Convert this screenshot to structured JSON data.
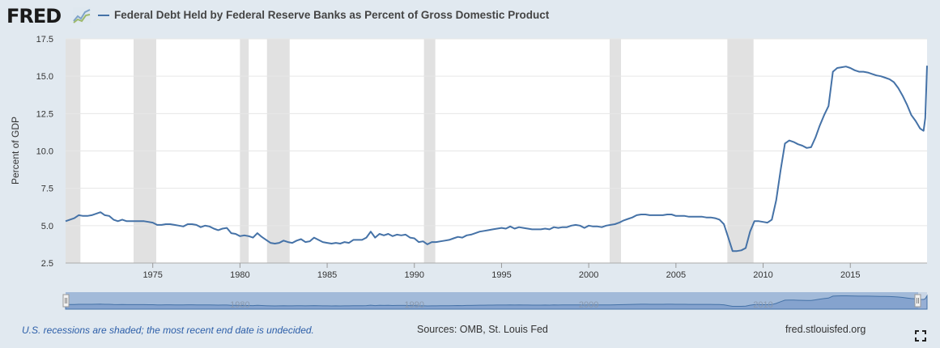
{
  "header": {
    "logo_text": "FRED",
    "logo_icon": "chart-icon",
    "series_color": "#4572a7"
  },
  "chart_data": {
    "type": "line",
    "title": "Federal Debt Held by Federal Reserve Banks as Percent of Gross Domestic Product",
    "ylabel": "Percent of GDP",
    "xlabel": "",
    "xlim": [
      1970.0,
      2019.4
    ],
    "ylim": [
      2.5,
      17.5
    ],
    "yticks": [
      2.5,
      5.0,
      7.5,
      10.0,
      12.5,
      15.0,
      17.5
    ],
    "ytick_labels": [
      "2.5",
      "5.0",
      "7.5",
      "10.0",
      "12.5",
      "15.0",
      "17.5"
    ],
    "xticks": [
      1975,
      1980,
      1985,
      1990,
      1995,
      2000,
      2005,
      2010,
      2015
    ],
    "xtick_labels": [
      "1975",
      "1980",
      "1985",
      "1990",
      "1995",
      "2000",
      "2005",
      "2010",
      "2015"
    ],
    "grid": true,
    "recessions": [
      [
        1970.0,
        1970.85
      ],
      [
        1973.9,
        1975.2
      ],
      [
        1980.0,
        1980.5
      ],
      [
        1981.55,
        1982.85
      ],
      [
        1990.55,
        1991.2
      ],
      [
        2001.2,
        2001.85
      ],
      [
        2007.95,
        2009.45
      ]
    ],
    "navigator_labels": [
      "1980",
      "1990",
      "2000",
      "2010"
    ],
    "series": [
      {
        "name": "Federal Debt Held by Federal Reserve Banks as Percent of Gross Domestic Product",
        "color": "#4572a7",
        "points": [
          [
            1970.0,
            5.3
          ],
          [
            1970.25,
            5.4
          ],
          [
            1970.5,
            5.5
          ],
          [
            1970.75,
            5.7
          ],
          [
            1971.0,
            5.65
          ],
          [
            1971.25,
            5.65
          ],
          [
            1971.5,
            5.7
          ],
          [
            1971.75,
            5.8
          ],
          [
            1972.0,
            5.9
          ],
          [
            1972.25,
            5.7
          ],
          [
            1972.5,
            5.65
          ],
          [
            1972.75,
            5.4
          ],
          [
            1973.0,
            5.3
          ],
          [
            1973.25,
            5.4
          ],
          [
            1973.5,
            5.3
          ],
          [
            1973.75,
            5.3
          ],
          [
            1974.0,
            5.3
          ],
          [
            1974.25,
            5.3
          ],
          [
            1974.5,
            5.3
          ],
          [
            1974.75,
            5.25
          ],
          [
            1975.0,
            5.2
          ],
          [
            1975.25,
            5.05
          ],
          [
            1975.5,
            5.05
          ],
          [
            1975.75,
            5.1
          ],
          [
            1976.0,
            5.1
          ],
          [
            1976.25,
            5.05
          ],
          [
            1976.5,
            5.0
          ],
          [
            1976.75,
            4.95
          ],
          [
            1977.0,
            5.1
          ],
          [
            1977.25,
            5.1
          ],
          [
            1977.5,
            5.05
          ],
          [
            1977.75,
            4.9
          ],
          [
            1978.0,
            5.0
          ],
          [
            1978.25,
            4.95
          ],
          [
            1978.5,
            4.8
          ],
          [
            1978.75,
            4.7
          ],
          [
            1979.0,
            4.8
          ],
          [
            1979.25,
            4.85
          ],
          [
            1979.5,
            4.5
          ],
          [
            1979.75,
            4.45
          ],
          [
            1980.0,
            4.3
          ],
          [
            1980.25,
            4.35
          ],
          [
            1980.5,
            4.3
          ],
          [
            1980.75,
            4.2
          ],
          [
            1981.0,
            4.5
          ],
          [
            1981.25,
            4.25
          ],
          [
            1981.5,
            4.05
          ],
          [
            1981.75,
            3.85
          ],
          [
            1982.0,
            3.8
          ],
          [
            1982.25,
            3.85
          ],
          [
            1982.5,
            4.0
          ],
          [
            1982.75,
            3.9
          ],
          [
            1983.0,
            3.85
          ],
          [
            1983.25,
            4.0
          ],
          [
            1983.5,
            4.1
          ],
          [
            1983.75,
            3.9
          ],
          [
            1984.0,
            3.95
          ],
          [
            1984.25,
            4.2
          ],
          [
            1984.5,
            4.05
          ],
          [
            1984.75,
            3.9
          ],
          [
            1985.0,
            3.85
          ],
          [
            1985.25,
            3.8
          ],
          [
            1985.5,
            3.85
          ],
          [
            1985.75,
            3.8
          ],
          [
            1986.0,
            3.9
          ],
          [
            1986.25,
            3.85
          ],
          [
            1986.5,
            4.05
          ],
          [
            1986.75,
            4.05
          ],
          [
            1987.0,
            4.05
          ],
          [
            1987.25,
            4.2
          ],
          [
            1987.5,
            4.6
          ],
          [
            1987.75,
            4.2
          ],
          [
            1988.0,
            4.45
          ],
          [
            1988.25,
            4.35
          ],
          [
            1988.5,
            4.45
          ],
          [
            1988.75,
            4.3
          ],
          [
            1989.0,
            4.4
          ],
          [
            1989.25,
            4.35
          ],
          [
            1989.5,
            4.4
          ],
          [
            1989.75,
            4.2
          ],
          [
            1990.0,
            4.15
          ],
          [
            1990.25,
            3.9
          ],
          [
            1990.5,
            3.95
          ],
          [
            1990.75,
            3.75
          ],
          [
            1991.0,
            3.9
          ],
          [
            1991.25,
            3.9
          ],
          [
            1991.5,
            3.95
          ],
          [
            1991.75,
            4.0
          ],
          [
            1992.0,
            4.05
          ],
          [
            1992.25,
            4.15
          ],
          [
            1992.5,
            4.25
          ],
          [
            1992.75,
            4.2
          ],
          [
            1993.0,
            4.35
          ],
          [
            1993.25,
            4.4
          ],
          [
            1993.5,
            4.5
          ],
          [
            1993.75,
            4.6
          ],
          [
            1994.0,
            4.65
          ],
          [
            1994.25,
            4.7
          ],
          [
            1994.5,
            4.75
          ],
          [
            1994.75,
            4.8
          ],
          [
            1995.0,
            4.85
          ],
          [
            1995.25,
            4.8
          ],
          [
            1995.5,
            4.95
          ],
          [
            1995.75,
            4.8
          ],
          [
            1996.0,
            4.9
          ],
          [
            1996.25,
            4.85
          ],
          [
            1996.5,
            4.8
          ],
          [
            1996.75,
            4.75
          ],
          [
            1997.0,
            4.75
          ],
          [
            1997.25,
            4.75
          ],
          [
            1997.5,
            4.8
          ],
          [
            1997.75,
            4.75
          ],
          [
            1998.0,
            4.9
          ],
          [
            1998.25,
            4.85
          ],
          [
            1998.5,
            4.9
          ],
          [
            1998.75,
            4.9
          ],
          [
            1999.0,
            5.0
          ],
          [
            1999.25,
            5.05
          ],
          [
            1999.5,
            5.0
          ],
          [
            1999.75,
            4.85
          ],
          [
            2000.0,
            5.0
          ],
          [
            2000.25,
            4.95
          ],
          [
            2000.5,
            4.95
          ],
          [
            2000.75,
            4.9
          ],
          [
            2001.0,
            5.0
          ],
          [
            2001.25,
            5.05
          ],
          [
            2001.5,
            5.1
          ],
          [
            2001.75,
            5.2
          ],
          [
            2002.0,
            5.35
          ],
          [
            2002.25,
            5.45
          ],
          [
            2002.5,
            5.55
          ],
          [
            2002.75,
            5.7
          ],
          [
            2003.0,
            5.75
          ],
          [
            2003.25,
            5.75
          ],
          [
            2003.5,
            5.7
          ],
          [
            2003.75,
            5.7
          ],
          [
            2004.0,
            5.7
          ],
          [
            2004.25,
            5.7
          ],
          [
            2004.5,
            5.75
          ],
          [
            2004.75,
            5.75
          ],
          [
            2005.0,
            5.65
          ],
          [
            2005.25,
            5.65
          ],
          [
            2005.5,
            5.65
          ],
          [
            2005.75,
            5.6
          ],
          [
            2006.0,
            5.6
          ],
          [
            2006.25,
            5.6
          ],
          [
            2006.5,
            5.6
          ],
          [
            2006.75,
            5.55
          ],
          [
            2007.0,
            5.55
          ],
          [
            2007.25,
            5.5
          ],
          [
            2007.5,
            5.4
          ],
          [
            2007.75,
            5.1
          ],
          [
            2008.0,
            4.2
          ],
          [
            2008.25,
            3.3
          ],
          [
            2008.5,
            3.3
          ],
          [
            2008.75,
            3.35
          ],
          [
            2009.0,
            3.5
          ],
          [
            2009.25,
            4.6
          ],
          [
            2009.5,
            5.3
          ],
          [
            2009.75,
            5.3
          ],
          [
            2010.0,
            5.25
          ],
          [
            2010.25,
            5.2
          ],
          [
            2010.5,
            5.4
          ],
          [
            2010.75,
            6.7
          ],
          [
            2011.0,
            8.7
          ],
          [
            2011.25,
            10.5
          ],
          [
            2011.5,
            10.7
          ],
          [
            2011.75,
            10.6
          ],
          [
            2012.0,
            10.45
          ],
          [
            2012.25,
            10.35
          ],
          [
            2012.5,
            10.2
          ],
          [
            2012.75,
            10.25
          ],
          [
            2013.0,
            10.9
          ],
          [
            2013.25,
            11.7
          ],
          [
            2013.5,
            12.4
          ],
          [
            2013.75,
            13.0
          ],
          [
            2014.0,
            15.3
          ],
          [
            2014.25,
            15.55
          ],
          [
            2014.5,
            15.6
          ],
          [
            2014.75,
            15.65
          ],
          [
            2015.0,
            15.55
          ],
          [
            2015.25,
            15.4
          ],
          [
            2015.5,
            15.3
          ],
          [
            2015.75,
            15.3
          ],
          [
            2016.0,
            15.25
          ],
          [
            2016.25,
            15.15
          ],
          [
            2016.5,
            15.05
          ],
          [
            2016.75,
            15.0
          ],
          [
            2017.0,
            14.9
          ],
          [
            2017.25,
            14.8
          ],
          [
            2017.5,
            14.6
          ],
          [
            2017.75,
            14.2
          ],
          [
            2018.0,
            13.7
          ],
          [
            2018.25,
            13.1
          ],
          [
            2018.5,
            12.4
          ],
          [
            2018.75,
            12.0
          ],
          [
            2019.0,
            11.5
          ],
          [
            2019.2,
            11.35
          ],
          [
            2019.3,
            12.2
          ],
          [
            2019.4,
            15.7
          ]
        ]
      }
    ]
  },
  "footer": {
    "note": "U.S. recessions are shaded; the most recent end date is undecided.",
    "sources": "Sources: OMB, St. Louis Fed",
    "site": "fred.stlouisfed.org",
    "fullscreen_icon": "fullscreen-icon"
  }
}
